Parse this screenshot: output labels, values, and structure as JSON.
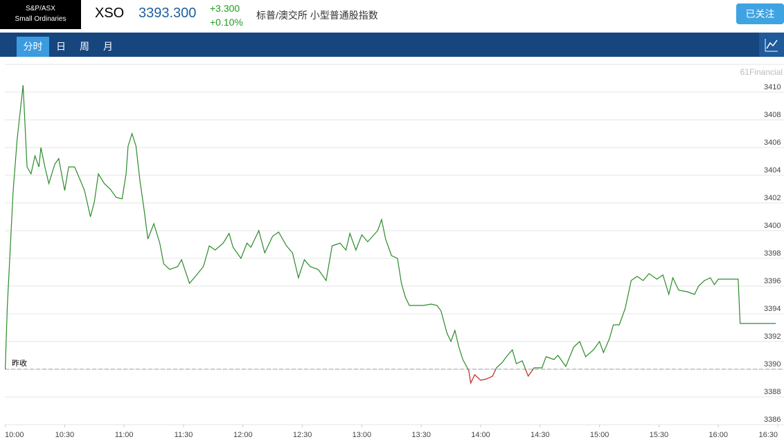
{
  "header": {
    "logo": [
      "S&P/ASX",
      "Small Ordinaries"
    ],
    "symbol": "XSO",
    "price": "3393.300",
    "change": "+3.300",
    "change_pct": "+0.10%",
    "name": "标普/澳交所 小型普通股指数",
    "button": "已关注"
  },
  "tabs": [
    "分时",
    "日",
    "周",
    "月"
  ],
  "chart_data": {
    "type": "line",
    "watermark": "61Financial",
    "prev_close": 3390,
    "prev_close_label": "昨收",
    "color": "#2a8a2a",
    "below_color": "#d8343c",
    "xlim": [
      "10:00",
      "16:30"
    ],
    "xticks": [
      "10:00",
      "10:30",
      "11:00",
      "11:30",
      "12:00",
      "12:30",
      "13:00",
      "13:30",
      "14:00",
      "14:30",
      "15:00",
      "15:30",
      "16:00",
      "16:30"
    ],
    "ylim": [
      3386,
      3412
    ],
    "yticks": [
      3386,
      3388,
      3390,
      3392,
      3394,
      3396,
      3398,
      3400,
      3402,
      3404,
      3406,
      3408,
      3410
    ],
    "grid": true,
    "x": [
      "10:00",
      "10:01",
      "10:03",
      "10:04",
      "10:06",
      "10:09",
      "10:11",
      "10:13",
      "10:15",
      "10:17",
      "10:18",
      "10:20",
      "10:22",
      "10:25",
      "10:27",
      "10:30",
      "10:32",
      "10:35",
      "10:38",
      "10:40",
      "10:43",
      "10:45",
      "10:47",
      "10:50",
      "10:53",
      "10:56",
      "10:59",
      "11:01",
      "11:02",
      "11:04",
      "11:06",
      "11:08",
      "11:10",
      "11:12",
      "11:15",
      "11:18",
      "11:20",
      "11:23",
      "11:27",
      "11:29",
      "11:33",
      "11:36",
      "11:40",
      "11:43",
      "11:46",
      "11:50",
      "11:53",
      "11:55",
      "11:59",
      "12:02",
      "12:04",
      "12:08",
      "12:11",
      "12:15",
      "12:18",
      "12:22",
      "12:25",
      "12:28",
      "12:31",
      "12:34",
      "12:38",
      "12:42",
      "12:45",
      "12:49",
      "12:52",
      "12:54",
      "12:57",
      "13:00",
      "13:03",
      "13:08",
      "13:10",
      "13:12",
      "13:15",
      "13:18",
      "13:20",
      "13:22",
      "13:24",
      "13:28",
      "13:31",
      "13:35",
      "13:38",
      "13:40",
      "13:43",
      "13:45",
      "13:47",
      "13:49",
      "13:51",
      "13:54",
      "13:55",
      "13:57",
      "14:00",
      "14:03",
      "14:06",
      "14:08",
      "14:11",
      "14:13",
      "14:16",
      "14:18",
      "14:21",
      "14:24",
      "14:27",
      "14:31",
      "14:33",
      "14:37",
      "14:39",
      "14:43",
      "14:47",
      "14:50",
      "14:53",
      "14:57",
      "15:00",
      "15:02",
      "15:05",
      "15:07",
      "15:10",
      "15:13",
      "15:16",
      "15:19",
      "15:22",
      "15:25",
      "15:29",
      "15:32",
      "15:35",
      "15:37",
      "15:40",
      "15:44",
      "15:48",
      "15:50",
      "15:53",
      "15:56",
      "15:58",
      "16:00",
      "16:10",
      "16:11",
      "16:29"
    ],
    "values": [
      3390.0,
      3394.4,
      3400.1,
      3402.9,
      3406.6,
      3410.5,
      3404.6,
      3404.1,
      3405.4,
      3404.6,
      3406.0,
      3404.6,
      3403.4,
      3404.8,
      3405.2,
      3402.9,
      3404.6,
      3404.6,
      3403.6,
      3402.9,
      3401.0,
      3402.1,
      3404.1,
      3403.4,
      3403.0,
      3402.4,
      3402.3,
      3404.1,
      3406.1,
      3407.0,
      3406.1,
      3403.6,
      3401.6,
      3399.4,
      3400.5,
      3399.1,
      3397.6,
      3397.2,
      3397.4,
      3397.9,
      3396.2,
      3396.7,
      3397.4,
      3398.9,
      3398.6,
      3399.1,
      3399.8,
      3398.8,
      3398.0,
      3399.1,
      3398.8,
      3400.0,
      3398.4,
      3399.6,
      3399.9,
      3398.9,
      3398.4,
      3396.6,
      3397.9,
      3397.4,
      3397.2,
      3396.4,
      3398.9,
      3399.1,
      3398.6,
      3399.8,
      3398.6,
      3399.7,
      3399.2,
      3400.0,
      3400.8,
      3399.4,
      3398.2,
      3398.0,
      3396.2,
      3395.2,
      3394.6,
      3394.6,
      3394.6,
      3394.7,
      3394.6,
      3394.2,
      3392.6,
      3392.0,
      3392.8,
      3391.6,
      3390.7,
      3389.9,
      3389.0,
      3389.6,
      3389.2,
      3389.3,
      3389.5,
      3390.1,
      3390.5,
      3390.9,
      3391.4,
      3390.4,
      3390.6,
      3389.5,
      3390.1,
      3390.1,
      3390.9,
      3390.7,
      3391.0,
      3390.2,
      3391.6,
      3392.0,
      3390.9,
      3391.4,
      3392.0,
      3391.2,
      3392.2,
      3393.2,
      3393.2,
      3394.4,
      3396.4,
      3396.7,
      3396.4,
      3396.9,
      3396.5,
      3396.8,
      3395.4,
      3396.6,
      3395.7,
      3395.6,
      3395.4,
      3396.0,
      3396.4,
      3396.6,
      3396.1,
      3396.5,
      3396.5,
      3393.3,
      3393.3
    ]
  }
}
